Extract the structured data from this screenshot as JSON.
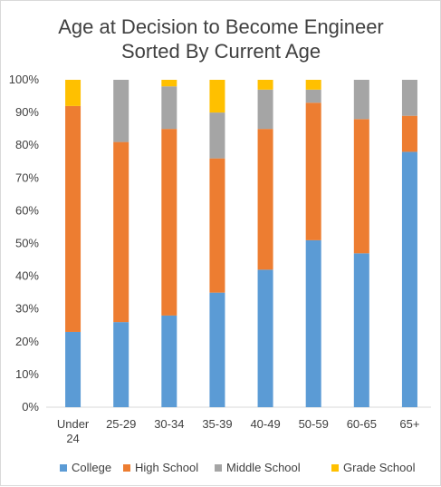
{
  "chart_data": {
    "type": "bar",
    "stacked": true,
    "title": [
      "Age at Decision to Become Engineer",
      "Sorted By Current Age"
    ],
    "categories": [
      [
        "Under",
        "24"
      ],
      [
        "25-29"
      ],
      [
        "30-34"
      ],
      [
        "35-39"
      ],
      [
        "40-49"
      ],
      [
        "50-59"
      ],
      [
        "60-65"
      ],
      [
        "65+"
      ]
    ],
    "series": [
      {
        "name": "College",
        "color": "#5b9bd5",
        "values": [
          23,
          26,
          28,
          35,
          42,
          51,
          47,
          78
        ]
      },
      {
        "name": "High School",
        "color": "#ed7d31",
        "values": [
          69,
          55,
          57,
          41,
          43,
          42,
          41,
          11
        ]
      },
      {
        "name": "Middle School",
        "color": "#a5a5a5",
        "values": [
          0,
          19,
          13,
          14,
          12,
          4,
          12,
          11
        ]
      },
      {
        "name": "Grade School",
        "color": "#ffc000",
        "values": [
          8,
          0,
          2,
          10,
          3,
          3,
          0,
          0
        ]
      }
    ],
    "yticks": [
      "0%",
      "10%",
      "20%",
      "30%",
      "40%",
      "50%",
      "60%",
      "70%",
      "80%",
      "90%",
      "100%"
    ],
    "ylim": [
      0,
      100
    ],
    "grid": false,
    "legend": "bottom"
  }
}
